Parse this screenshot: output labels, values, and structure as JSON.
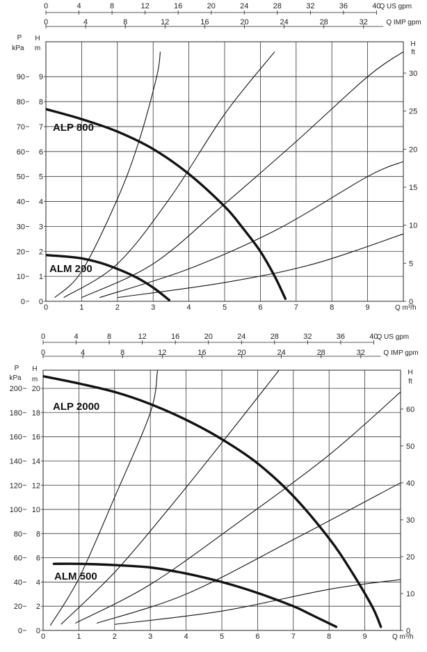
{
  "chart_data": [
    {
      "type": "line",
      "title": "",
      "top_axis_1": {
        "label": "Q US gpm",
        "ticks": [
          "0",
          "4",
          "8",
          "12",
          "16",
          "20",
          "24",
          "28",
          "32",
          "36",
          "40"
        ],
        "range": [
          0,
          40
        ]
      },
      "top_axis_2": {
        "label": "Q IMP gpm",
        "ticks": [
          "0",
          "4",
          "8",
          "12",
          "16",
          "20",
          "24",
          "28",
          "32"
        ]
      },
      "x_axis": {
        "label": "Q m³/h",
        "ticks": [
          "0",
          "1",
          "2",
          "3",
          "4",
          "5",
          "6",
          "7",
          "8",
          "9"
        ],
        "range": [
          0,
          10
        ]
      },
      "left_axis_outer": {
        "label_line1": "P",
        "label_line2": "kPa",
        "ticks": [
          "0",
          "10",
          "20",
          "30",
          "40",
          "50",
          "60",
          "70",
          "80",
          "90"
        ]
      },
      "left_axis_inner": {
        "label": "H m",
        "ticks": [
          "0",
          "1",
          "2",
          "3",
          "4",
          "5",
          "6",
          "7",
          "8",
          "9"
        ],
        "range": [
          0,
          10.4
        ]
      },
      "right_axis": {
        "label": "H ft",
        "ticks": [
          "0",
          "5",
          "10",
          "15",
          "20",
          "25",
          "30"
        ]
      },
      "grid": true,
      "series": [
        {
          "name": "ALP 800",
          "x": [
            0,
            1,
            2,
            3,
            4,
            5,
            5.5,
            6,
            6.4,
            6.7
          ],
          "y": [
            7.7,
            7.3,
            6.8,
            6.1,
            5.1,
            3.8,
            2.95,
            2.0,
            1.0,
            0.1
          ]
        },
        {
          "name": "ALM 200",
          "x": [
            0,
            0.5,
            1,
            1.5,
            2,
            2.5,
            3,
            3.45
          ],
          "y": [
            1.85,
            1.8,
            1.72,
            1.55,
            1.3,
            0.98,
            0.55,
            0.05
          ]
        }
      ],
      "system_curves": [
        {
          "x": [
            0.25,
            1,
            2,
            2.6,
            3.1,
            3.2
          ],
          "y": [
            0.15,
            1.2,
            4.1,
            6.4,
            9.0,
            10.0
          ]
        },
        {
          "x": [
            0.5,
            2,
            3.5,
            5,
            6.4
          ],
          "y": [
            0.15,
            1.5,
            4.2,
            7.5,
            10.0
          ]
        },
        {
          "x": [
            1,
            3,
            5,
            7,
            9,
            10.0
          ],
          "y": [
            0.15,
            1.5,
            3.9,
            6.4,
            9.0,
            10.0
          ]
        },
        {
          "x": [
            1.5,
            4,
            6.5,
            9,
            10.0
          ],
          "y": [
            0.15,
            1.3,
            2.9,
            5.0,
            5.6
          ]
        },
        {
          "x": [
            2,
            5,
            7.5,
            10.0
          ],
          "y": [
            0.15,
            0.75,
            1.5,
            2.7
          ]
        }
      ]
    },
    {
      "type": "line",
      "title": "",
      "top_axis_1": {
        "label": "Q US gpm",
        "ticks": [
          "0",
          "4",
          "8",
          "12",
          "16",
          "20",
          "24",
          "28",
          "32",
          "36",
          "40"
        ],
        "range": [
          0,
          40
        ]
      },
      "top_axis_2": {
        "label": "Q IMP gpm",
        "ticks": [
          "0",
          "4",
          "8",
          "12",
          "16",
          "20",
          "24",
          "28",
          "32"
        ]
      },
      "x_axis": {
        "label": "Q m³/h",
        "ticks": [
          "0",
          "1",
          "2",
          "3",
          "4",
          "5",
          "6",
          "7",
          "8",
          "9"
        ],
        "range": [
          0,
          10
        ]
      },
      "left_axis_outer": {
        "label_line1": "P",
        "label_line2": "kPa",
        "ticks": [
          "0",
          "20",
          "40",
          "60",
          "80",
          "100",
          "120",
          "140",
          "160",
          "180",
          "200"
        ]
      },
      "left_axis_inner": {
        "label": "H m",
        "ticks": [
          "0",
          "2",
          "4",
          "6",
          "8",
          "10",
          "12",
          "14",
          "16",
          "18",
          "20"
        ],
        "range": [
          0,
          21.5
        ]
      },
      "right_axis": {
        "label": "H ft",
        "ticks": [
          "0",
          "10",
          "20",
          "30",
          "40",
          "50",
          "60"
        ]
      },
      "grid": true,
      "series": [
        {
          "name": "ALP 2000",
          "x": [
            0,
            1,
            2,
            3,
            4,
            5,
            6,
            7,
            8,
            8.6,
            9.2,
            9.45
          ],
          "y": [
            21.0,
            20.4,
            19.7,
            18.7,
            17.4,
            15.8,
            13.8,
            11.1,
            7.6,
            5.0,
            2.0,
            0.3
          ]
        },
        {
          "name": "ALM 500",
          "x": [
            0.3,
            1,
            2,
            3,
            4,
            5,
            6,
            7,
            7.5,
            8.2
          ],
          "y": [
            5.5,
            5.5,
            5.4,
            5.2,
            4.7,
            4.0,
            3.1,
            2.0,
            1.3,
            0.3
          ]
        }
      ],
      "system_curves": [
        {
          "x": [
            0.2,
            1,
            2,
            3,
            3.2
          ],
          "y": [
            0.4,
            4.3,
            11.0,
            18.0,
            21.5
          ]
        },
        {
          "x": [
            0.5,
            2,
            3.5,
            5,
            6.6
          ],
          "y": [
            0.5,
            4.8,
            10.0,
            15.5,
            21.5
          ]
        },
        {
          "x": [
            0.9,
            3,
            5.5,
            8,
            10.0
          ],
          "y": [
            0.6,
            3.8,
            9.0,
            14.5,
            19.7
          ]
        },
        {
          "x": [
            1.5,
            4,
            7,
            10.0
          ],
          "y": [
            0.6,
            3.0,
            7.5,
            12.2
          ]
        },
        {
          "x": [
            2,
            5,
            8,
            10.0
          ],
          "y": [
            0.5,
            1.6,
            3.4,
            4.2
          ]
        }
      ]
    }
  ]
}
